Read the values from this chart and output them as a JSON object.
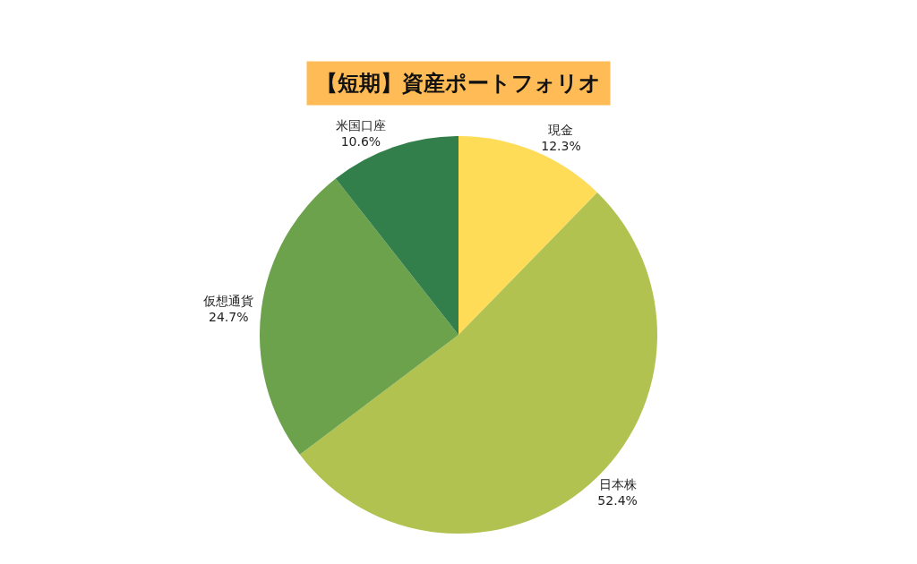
{
  "chart_data": {
    "type": "pie",
    "title": "【短期】資産ポートフォリオ",
    "categories": [
      "現金",
      "日本株",
      "仮想通貨",
      "米国口座"
    ],
    "values": [
      12.3,
      52.4,
      24.7,
      10.6
    ],
    "value_labels": [
      "12.3%",
      "52.4%",
      "24.7%",
      "10.6%"
    ],
    "colors": [
      "#fedc58",
      "#b2c250",
      "#6ba24b",
      "#337f4b"
    ],
    "legend": false
  }
}
